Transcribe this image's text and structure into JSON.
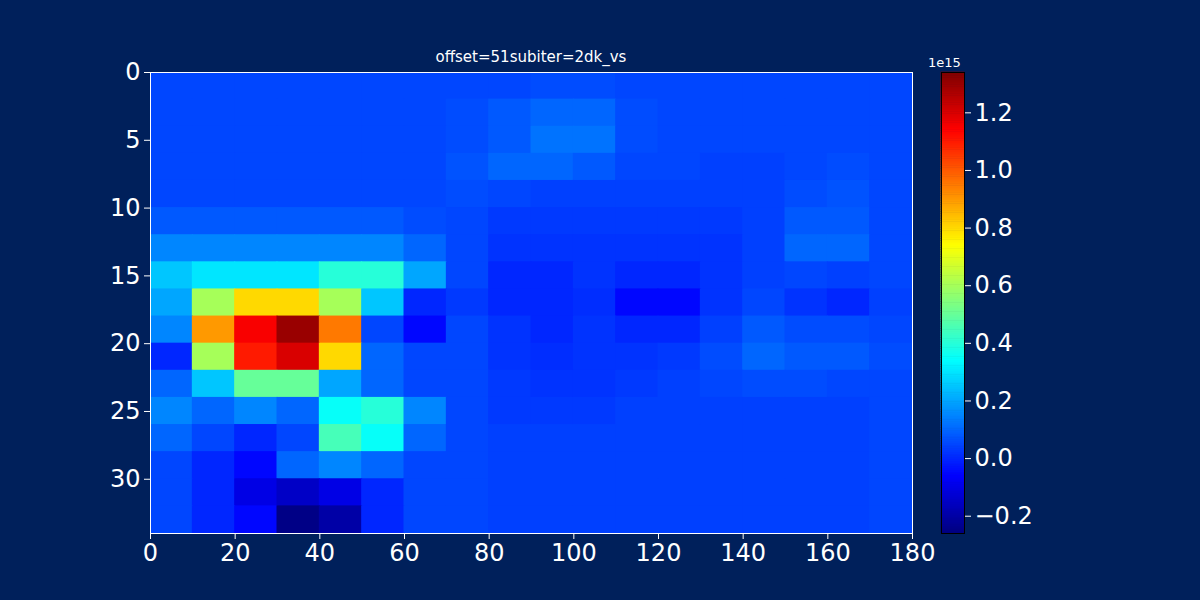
{
  "chart_data": {
    "type": "heatmap",
    "title": "offset=51subiter=2dk_vs",
    "x_edges": [
      0,
      10,
      20,
      30,
      40,
      50,
      60,
      70,
      80,
      90,
      100,
      110,
      120,
      130,
      140,
      150,
      160,
      170,
      180
    ],
    "y_edges": [
      0,
      2,
      4,
      6,
      8,
      10,
      12,
      14,
      16,
      18,
      20,
      22,
      24,
      26,
      28,
      30,
      32,
      34
    ],
    "values": [
      [
        0.05,
        0.05,
        0.05,
        0.05,
        0.05,
        0.05,
        0.05,
        0.05,
        0.05,
        0.06,
        0.06,
        0.05,
        0.05,
        0.05,
        0.05,
        0.05,
        0.05,
        0.05
      ],
      [
        0.05,
        0.05,
        0.05,
        0.05,
        0.05,
        0.05,
        0.05,
        0.06,
        0.08,
        0.1,
        0.1,
        0.06,
        0.05,
        0.05,
        0.05,
        0.05,
        0.05,
        0.05
      ],
      [
        0.05,
        0.05,
        0.05,
        0.05,
        0.05,
        0.05,
        0.05,
        0.06,
        0.08,
        0.12,
        0.12,
        0.06,
        0.05,
        0.05,
        0.05,
        0.05,
        0.05,
        0.05
      ],
      [
        0.05,
        0.05,
        0.05,
        0.05,
        0.05,
        0.05,
        0.05,
        0.07,
        0.1,
        0.1,
        0.08,
        0.05,
        0.05,
        0.04,
        0.04,
        0.05,
        0.06,
        0.05
      ],
      [
        0.05,
        0.05,
        0.05,
        0.05,
        0.05,
        0.05,
        0.05,
        0.06,
        0.05,
        0.04,
        0.04,
        0.04,
        0.04,
        0.04,
        0.04,
        0.06,
        0.07,
        0.05
      ],
      [
        0.08,
        0.08,
        0.08,
        0.08,
        0.08,
        0.08,
        0.06,
        0.05,
        0.03,
        0.03,
        0.03,
        0.03,
        0.03,
        0.03,
        0.04,
        0.08,
        0.08,
        0.05
      ],
      [
        0.15,
        0.15,
        0.15,
        0.15,
        0.15,
        0.15,
        0.1,
        0.05,
        0.02,
        0.02,
        0.02,
        0.02,
        0.02,
        0.02,
        0.04,
        0.1,
        0.1,
        0.05
      ],
      [
        0.25,
        0.3,
        0.3,
        0.3,
        0.4,
        0.4,
        0.2,
        0.05,
        0.0,
        0.0,
        0.02,
        0.0,
        0.0,
        0.02,
        0.04,
        0.05,
        0.04,
        0.05
      ],
      [
        0.2,
        0.6,
        0.8,
        0.8,
        0.6,
        0.25,
        0.0,
        0.03,
        0.0,
        0.0,
        0.01,
        -0.05,
        -0.05,
        0.02,
        0.05,
        0.02,
        0.0,
        0.04
      ],
      [
        0.15,
        0.9,
        1.15,
        1.3,
        0.95,
        0.05,
        -0.05,
        0.05,
        0.02,
        0.0,
        0.02,
        0.0,
        0.0,
        0.04,
        0.08,
        0.06,
        0.06,
        0.05
      ],
      [
        0.0,
        0.6,
        1.1,
        1.2,
        0.8,
        0.1,
        0.05,
        0.05,
        0.02,
        0.01,
        0.02,
        0.02,
        0.03,
        0.06,
        0.1,
        0.08,
        0.08,
        0.06
      ],
      [
        0.1,
        0.25,
        0.5,
        0.5,
        0.2,
        0.1,
        0.05,
        0.05,
        0.03,
        0.02,
        0.02,
        0.03,
        0.04,
        0.05,
        0.06,
        0.06,
        0.05,
        0.05
      ],
      [
        0.15,
        0.1,
        0.15,
        0.1,
        0.35,
        0.4,
        0.15,
        0.05,
        0.03,
        0.03,
        0.03,
        0.04,
        0.04,
        0.04,
        0.04,
        0.04,
        0.04,
        0.05
      ],
      [
        0.1,
        0.05,
        0.0,
        0.05,
        0.45,
        0.35,
        0.1,
        0.05,
        0.04,
        0.04,
        0.04,
        0.04,
        0.04,
        0.04,
        0.04,
        0.04,
        0.04,
        0.05
      ],
      [
        0.05,
        0.0,
        -0.05,
        0.1,
        0.15,
        0.1,
        0.05,
        0.05,
        0.04,
        0.04,
        0.04,
        0.04,
        0.04,
        0.04,
        0.04,
        0.04,
        0.04,
        0.05
      ],
      [
        0.05,
        0.0,
        -0.1,
        -0.15,
        -0.1,
        0.0,
        0.05,
        0.05,
        0.04,
        0.04,
        0.04,
        0.04,
        0.04,
        0.04,
        0.04,
        0.04,
        0.04,
        0.05
      ],
      [
        0.05,
        0.0,
        -0.05,
        -0.25,
        -0.2,
        0.0,
        0.05,
        0.05,
        0.04,
        0.04,
        0.04,
        0.04,
        0.04,
        0.04,
        0.04,
        0.04,
        0.04,
        0.05
      ]
    ],
    "xlim": [
      0,
      180
    ],
    "xticks": [
      0,
      20,
      40,
      60,
      80,
      100,
      120,
      140,
      160,
      180
    ],
    "ylim": [
      34,
      0
    ],
    "yticks": [
      0,
      5,
      10,
      15,
      20,
      25,
      30
    ],
    "colorbar": {
      "range": [
        -0.26,
        1.34
      ],
      "ticks": [
        {
          "value": -0.2,
          "label": "−0.2"
        },
        {
          "value": 0,
          "label": "0.0"
        },
        0.2,
        0.4,
        0.6,
        0.8,
        {
          "value": 1,
          "label": "1.0"
        },
        1.2
      ],
      "offset_label": "1e15"
    }
  }
}
